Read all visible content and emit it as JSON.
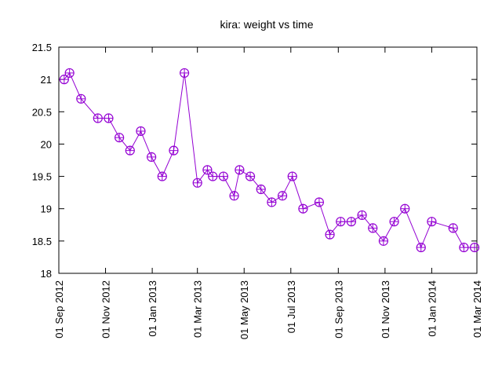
{
  "chart_data": {
    "type": "line",
    "title": "kira: weight vs time",
    "xlabel": "",
    "ylabel": "",
    "x_type": "date",
    "xlim": [
      "2012-09-01",
      "2014-03-01"
    ],
    "ylim": [
      18,
      21.5
    ],
    "x_ticks": [
      "2012-09-01",
      "2012-11-01",
      "2013-01-01",
      "2013-03-01",
      "2013-05-01",
      "2013-07-01",
      "2013-09-01",
      "2013-11-01",
      "2014-01-01",
      "2014-03-01"
    ],
    "x_tick_labels": [
      "01 Sep 2012",
      "01 Nov 2012",
      "01 Jan 2013",
      "01 Mar 2013",
      "01 May 2013",
      "01 Jul 2013",
      "01 Sep 2013",
      "01 Nov 2013",
      "01 Jan 2014",
      "01 Mar 2014"
    ],
    "y_ticks": [
      18,
      18.5,
      19,
      19.5,
      20,
      20.5,
      21,
      21.5
    ],
    "y_tick_labels": [
      "18",
      "18.5",
      "19",
      "19.5",
      "20",
      "20.5",
      "21",
      "21.5"
    ],
    "grid": false,
    "series": [
      {
        "color": "#9400d3",
        "marker": "circle-cross",
        "x": [
          "2012-09-08",
          "2012-09-15",
          "2012-09-30",
          "2012-10-22",
          "2012-11-05",
          "2012-11-19",
          "2012-12-03",
          "2012-12-17",
          "2012-12-31",
          "2013-01-14",
          "2013-01-29",
          "2013-02-12",
          "2013-03-01",
          "2013-03-14",
          "2013-03-21",
          "2013-04-04",
          "2013-04-18",
          "2013-04-25",
          "2013-05-09",
          "2013-05-23",
          "2013-06-06",
          "2013-06-20",
          "2013-07-03",
          "2013-07-17",
          "2013-08-07",
          "2013-08-21",
          "2013-09-04",
          "2013-09-18",
          "2013-10-02",
          "2013-10-16",
          "2013-10-30",
          "2013-11-13",
          "2013-11-27",
          "2013-12-18",
          "2014-01-01",
          "2014-01-29",
          "2014-02-12",
          "2014-02-26"
        ],
        "y": [
          21.0,
          21.1,
          20.7,
          20.4,
          20.4,
          20.1,
          19.9,
          20.2,
          19.8,
          19.5,
          19.9,
          21.1,
          19.4,
          19.6,
          19.5,
          19.5,
          19.2,
          19.6,
          19.5,
          19.3,
          19.1,
          19.2,
          19.5,
          19.0,
          19.1,
          18.6,
          18.8,
          18.8,
          18.9,
          18.7,
          18.5,
          18.8,
          19.0,
          18.4,
          18.8,
          18.7,
          18.4,
          18.4
        ]
      }
    ]
  }
}
